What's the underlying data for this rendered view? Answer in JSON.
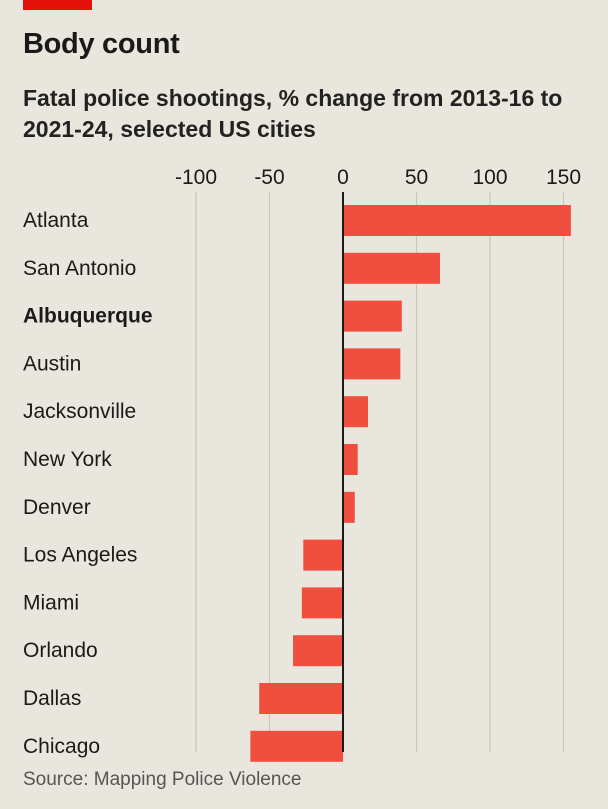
{
  "header": {
    "title": "Body count",
    "subtitle": "Fatal police shootings, % change from 2013-16 to 2021-24, selected US cities"
  },
  "footer": {
    "source": "Source: Mapping Police Violence"
  },
  "colors": {
    "bar": "#f04e3e",
    "brand": "#e3120b",
    "grid": "#c8c6bd",
    "zero_line": "#1a1a1a",
    "background": "#e9e7dd"
  },
  "chart_data": {
    "type": "bar",
    "orientation": "horizontal",
    "categories": [
      "Atlanta",
      "San Antonio",
      "Albuquerque",
      "Austin",
      "Jacksonville",
      "New York",
      "Denver",
      "Los Angeles",
      "Miami",
      "Orlando",
      "Dallas",
      "Chicago"
    ],
    "highlighted_category": "Albuquerque",
    "values": [
      155,
      66,
      40,
      39,
      17,
      10,
      8,
      -27,
      -28,
      -34,
      -57,
      -63
    ],
    "xlim": [
      -100,
      155
    ],
    "xticks": [
      -100,
      -50,
      0,
      50,
      100,
      150
    ],
    "xtick_labels": [
      "-100",
      "-50",
      "0",
      "50",
      "100",
      "150"
    ],
    "xaxis_position": "top",
    "grid": true,
    "legend": "none"
  }
}
